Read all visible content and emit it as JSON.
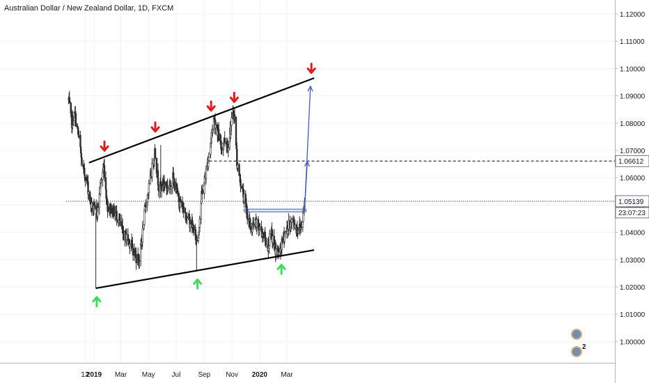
{
  "header": {
    "title": "Australian Dollar / New Zealand Dollar, 1D, FXCM"
  },
  "price_badges": {
    "current": "1.05139",
    "countdown": "23:07:23",
    "level": "1.06612"
  },
  "avatars": {
    "count": "2"
  },
  "colors": {
    "bull_candle": "#ffffff",
    "bear_candle": "#2b2b2b",
    "trendline": "#000000",
    "sell_arrow": "#e01b1b",
    "buy_arrow": "#3ddc5a",
    "projection": "#3f57c8"
  },
  "chart_data": {
    "type": "candlestick",
    "title": "Australian Dollar / New Zealand Dollar, 1D, FXCM",
    "symbol": "AUDNZD",
    "timeframe": "1D",
    "ylim": [
      0.9955,
      1.1255
    ],
    "y_ticks": [
      "1.12000",
      "1.11000",
      "1.10000",
      "1.09000",
      "1.08000",
      "1.07000",
      "1.06000",
      "1.05000",
      "1.04000",
      "1.03000",
      "1.02000",
      "1.01000",
      "1.00000"
    ],
    "x_ticks": [
      "12",
      "2019",
      "Mar",
      "May",
      "Jul",
      "Sep",
      "Nov",
      "2020",
      "Mar"
    ],
    "grid": true,
    "price_path": [
      [
        "2018-11-06",
        1.0885
      ],
      [
        "2018-11-12",
        1.08
      ],
      [
        "2018-11-20",
        1.083
      ],
      [
        "2018-11-26",
        1.077
      ],
      [
        "2018-12-01",
        1.072
      ],
      [
        "2018-12-07",
        1.062
      ],
      [
        "2018-12-14",
        1.061
      ],
      [
        "2018-12-20",
        1.055
      ],
      [
        "2018-12-27",
        1.049
      ],
      [
        "2019-01-02",
        1.048
      ],
      [
        "2019-01-07",
        1.047
      ],
      [
        "2019-01-12",
        1.052
      ],
      [
        "2019-01-17",
        1.06
      ],
      [
        "2019-01-23",
        1.064
      ],
      [
        "2019-01-30",
        1.05
      ],
      [
        "2019-02-10",
        1.048
      ],
      [
        "2019-02-22",
        1.046
      ],
      [
        "2019-03-07",
        1.039
      ],
      [
        "2019-03-20",
        1.037
      ],
      [
        "2019-04-04",
        1.031
      ],
      [
        "2019-04-12",
        1.0305
      ],
      [
        "2019-04-24",
        1.049
      ],
      [
        "2019-05-06",
        1.06
      ],
      [
        "2019-05-15",
        1.07
      ],
      [
        "2019-05-24",
        1.056
      ],
      [
        "2019-06-05",
        1.058
      ],
      [
        "2019-06-15",
        1.056
      ],
      [
        "2019-06-24",
        1.06
      ],
      [
        "2019-07-05",
        1.053
      ],
      [
        "2019-07-15",
        1.049
      ],
      [
        "2019-07-28",
        1.045
      ],
      [
        "2019-08-07",
        1.042
      ],
      [
        "2019-08-17",
        1.036
      ],
      [
        "2019-08-26",
        1.053
      ],
      [
        "2019-09-05",
        1.062
      ],
      [
        "2019-09-13",
        1.07
      ],
      [
        "2019-09-21",
        1.082
      ],
      [
        "2019-09-28",
        1.079
      ],
      [
        "2019-10-08",
        1.071
      ],
      [
        "2019-10-16",
        1.074
      ],
      [
        "2019-10-23",
        1.072
      ],
      [
        "2019-10-31",
        1.08
      ],
      [
        "2019-11-05",
        1.084
      ],
      [
        "2019-11-08",
        1.08
      ],
      [
        "2019-11-12",
        1.066
      ],
      [
        "2019-11-18",
        1.06
      ],
      [
        "2019-11-28",
        1.052
      ],
      [
        "2019-12-06",
        1.046
      ],
      [
        "2019-12-13",
        1.041
      ],
      [
        "2019-12-24",
        1.043
      ],
      [
        "2020-01-08",
        1.04
      ],
      [
        "2020-01-18",
        1.035
      ],
      [
        "2020-01-27",
        1.039
      ],
      [
        "2020-02-06",
        1.033
      ],
      [
        "2020-02-14",
        1.032
      ],
      [
        "2020-02-24",
        1.039
      ],
      [
        "2020-03-04",
        1.042
      ],
      [
        "2020-03-14",
        1.044
      ],
      [
        "2020-03-24",
        1.041
      ],
      [
        "2020-04-01",
        1.042
      ],
      [
        "2020-04-06",
        1.047
      ],
      [
        "2020-04-09",
        1.0514
      ]
    ],
    "wicks": [
      {
        "date": "2019-01-05",
        "high": 1.047,
        "low": 1.0195
      },
      {
        "date": "2019-08-15",
        "high": 1.039,
        "low": 1.026
      },
      {
        "date": "2019-05-28",
        "high": 1.072,
        "low": 1.056
      }
    ],
    "trendlines": [
      {
        "name": "upper",
        "from": [
          "2018-12-21",
          1.0655
        ],
        "to": [
          "2020-04-30",
          1.0965
        ]
      },
      {
        "name": "lower",
        "from": [
          "2019-01-05",
          1.0195
        ],
        "to": [
          "2020-04-30",
          1.0335
        ]
      }
    ],
    "horizontal_lines": [
      {
        "value": 1.06612,
        "style": "dashed",
        "from": "2019-09-12"
      },
      {
        "value": 1.05139,
        "style": "dotted",
        "from": "2018-11-01"
      }
    ],
    "resistance_box": {
      "from": "2019-11-28",
      "to": "2020-04-12",
      "low": 1.0475,
      "high": 1.0485
    },
    "projection_path": [
      [
        "2020-04-09",
        1.048
      ],
      [
        "2020-04-15",
        1.066
      ],
      [
        "2020-04-22",
        1.0935
      ]
    ],
    "sell_arrows": [
      "2019-01-24",
      "2019-05-16",
      "2019-09-16",
      "2019-11-06",
      "2020-04-24"
    ],
    "buy_arrows": [
      "2019-01-07",
      "2019-08-17",
      "2020-02-18"
    ]
  }
}
